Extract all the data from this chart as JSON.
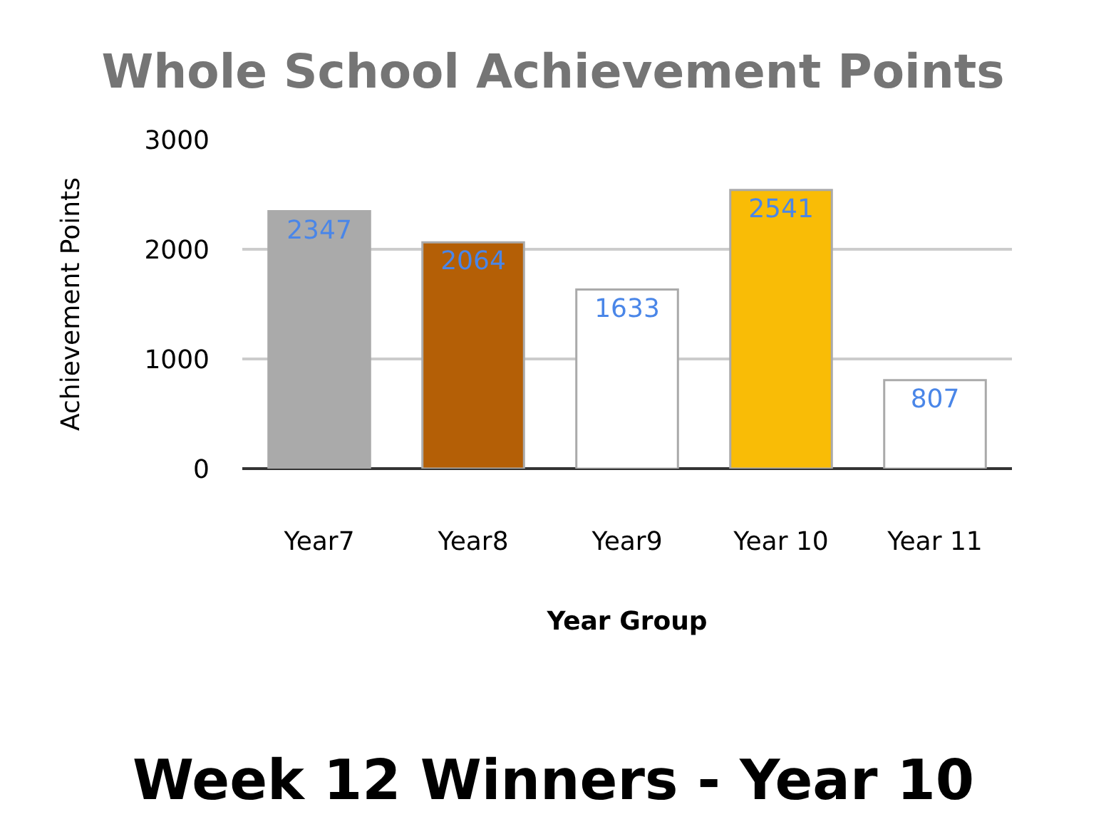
{
  "chart_data": {
    "type": "bar",
    "title": "Whole School Achievement Points",
    "xlabel": "Year Group",
    "ylabel": "Achievement Points",
    "categories": [
      "Year7",
      "Year8",
      "Year9",
      "Year 10",
      "Year 11"
    ],
    "values": [
      2347,
      2064,
      1633,
      2541,
      807
    ],
    "colors": [
      "#aaaaaa",
      "#b45f06",
      "#ffffff",
      "#f9bc06",
      "#ffffff"
    ],
    "ylim": [
      0,
      3000
    ],
    "yticks": [
      0,
      1000,
      2000,
      3000
    ],
    "grid": "y",
    "data_labels": true,
    "annotations": [
      "Week 12 Winners - Year 10"
    ]
  }
}
